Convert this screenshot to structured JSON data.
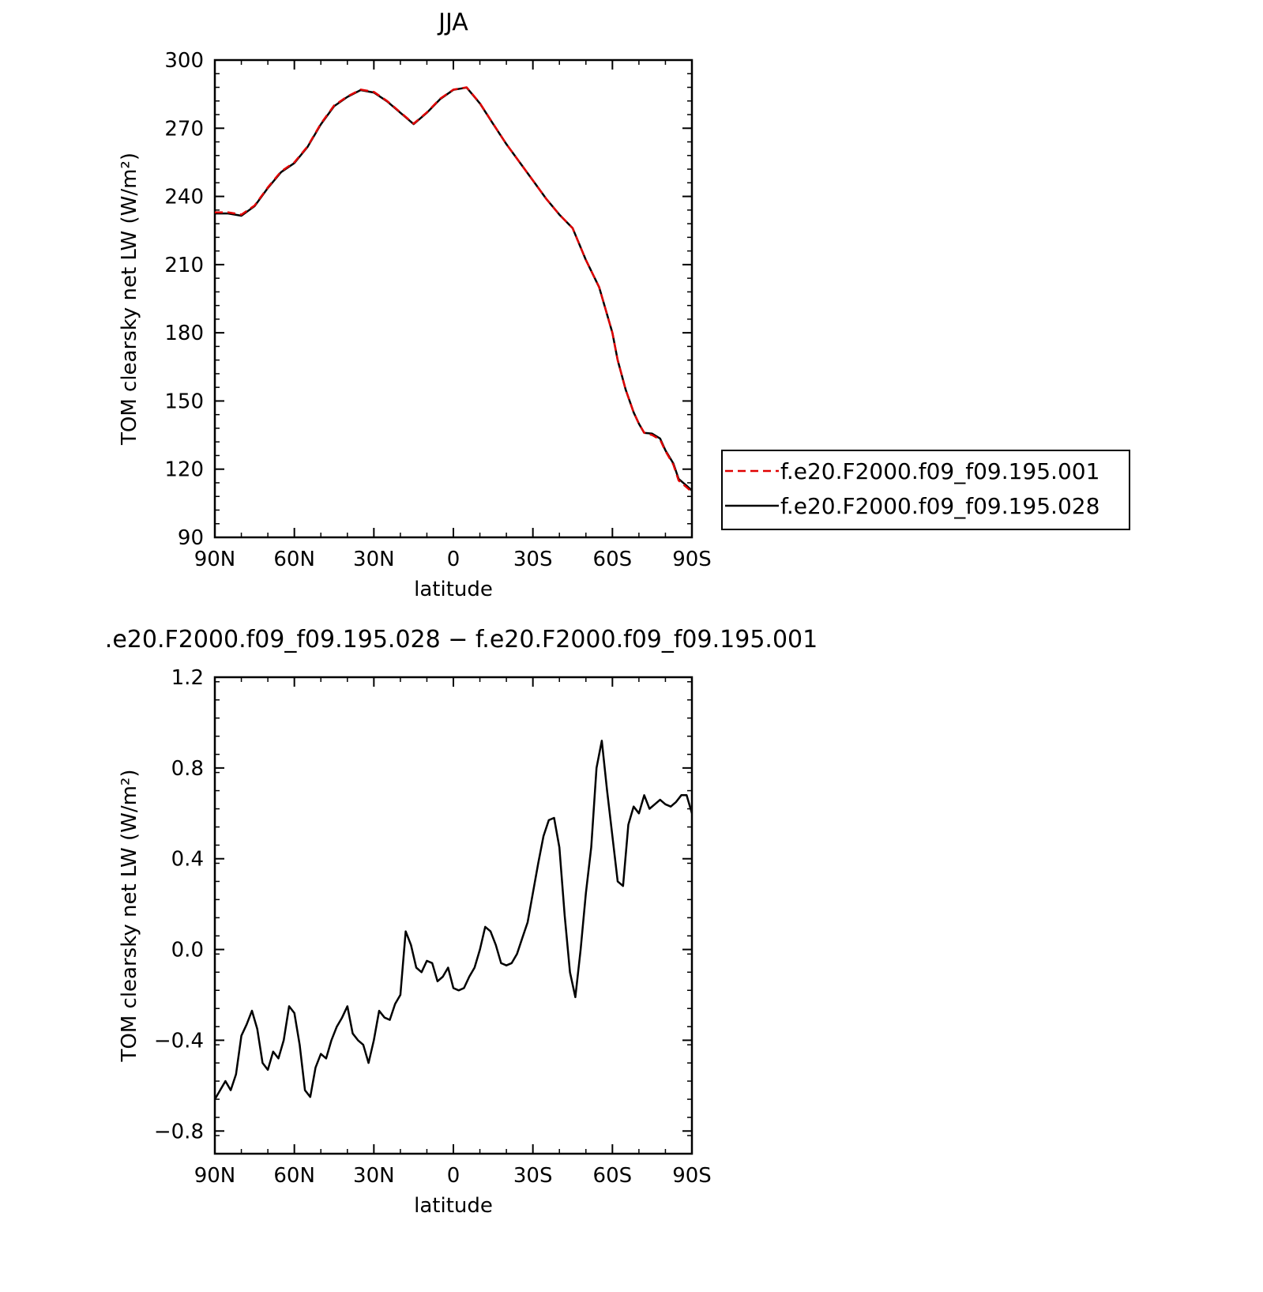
{
  "chart_data": [
    {
      "type": "line",
      "title": "JJA",
      "xlabel": "latitude",
      "ylabel": "TOM clearsky net LW (W/m²)",
      "xlim": [
        90,
        -90
      ],
      "ylim": [
        90,
        300
      ],
      "xticks": [
        90,
        60,
        30,
        0,
        -30,
        -60,
        -90
      ],
      "xtick_labels": [
        "90N",
        "60N",
        "30N",
        "0",
        "30S",
        "60S",
        "90S"
      ],
      "yticks": [
        90,
        120,
        150,
        180,
        210,
        240,
        270,
        300
      ],
      "ytick_labels": [
        "90",
        "120",
        "150",
        "180",
        "210",
        "240",
        "270",
        "300"
      ],
      "legend_position": "right",
      "x": [
        90,
        85,
        80,
        75,
        70,
        65,
        60,
        55,
        50,
        45,
        40,
        35,
        30,
        25,
        20,
        15,
        10,
        5,
        0,
        -5,
        -10,
        -15,
        -20,
        -25,
        -30,
        -35,
        -40,
        -45,
        -50,
        -55,
        -60,
        -62,
        -65,
        -68,
        -70,
        -72,
        -75,
        -78,
        -80,
        -83,
        -85,
        -88,
        -90
      ],
      "series": [
        {
          "name": "f.e20.F2000.f09_f09.195.001",
          "color": "#e00000",
          "dash": "dashed",
          "values": [
            233,
            233,
            232,
            236,
            244,
            251,
            255,
            262,
            272,
            280,
            284,
            287,
            286,
            282,
            277,
            272,
            277,
            283,
            287,
            288,
            281,
            272,
            263,
            255,
            247,
            239,
            232,
            226,
            212,
            200,
            180,
            168,
            155,
            145,
            140,
            136,
            135,
            133,
            128,
            122,
            115,
            112,
            110
          ]
        },
        {
          "name": "f.e20.F2000.f09_f09.195.028",
          "color": "#000000",
          "dash": "solid",
          "values": [
            232.5,
            232.5,
            231.5,
            235.7,
            243.7,
            250.7,
            254.7,
            261.8,
            271.7,
            279.7,
            283.8,
            286.8,
            285.7,
            281.8,
            276.8,
            271.8,
            276.8,
            282.8,
            286.9,
            287.9,
            280.9,
            271.9,
            263,
            255,
            247,
            239,
            232,
            226,
            212,
            200,
            180,
            168,
            155,
            145,
            140,
            136,
            135.6,
            133.5,
            128.3,
            122.5,
            115.7,
            112.7,
            110.6
          ]
        }
      ]
    },
    {
      "type": "line",
      "title": ".e20.F2000.f09_f09.195.028 − f.e20.F2000.f09_f09.195.001",
      "xlabel": "latitude",
      "ylabel": "TOM clearsky net LW (W/m²)",
      "xlim": [
        90,
        -90
      ],
      "ylim": [
        -0.9,
        1.2
      ],
      "xticks": [
        90,
        60,
        30,
        0,
        -30,
        -60,
        -90
      ],
      "xtick_labels": [
        "90N",
        "60N",
        "30N",
        "0",
        "30S",
        "60S",
        "90S"
      ],
      "yticks": [
        1.2,
        0.8,
        0.4,
        0.0,
        -0.4,
        -0.8
      ],
      "ytick_labels": [
        "1.2",
        "0.8",
        "0.4",
        "0.0",
        "−0.4",
        "−0.8"
      ],
      "series": [
        {
          "color": "#000000",
          "x": [
            90,
            88,
            86,
            84,
            82,
            80,
            78,
            76,
            74,
            72,
            70,
            68,
            66,
            64,
            62,
            60,
            58,
            56,
            54,
            52,
            50,
            48,
            46,
            44,
            42,
            40,
            38,
            36,
            34,
            32,
            30,
            28,
            26,
            24,
            22,
            20,
            18,
            16,
            14,
            12,
            10,
            8,
            6,
            4,
            2,
            0,
            -2,
            -4,
            -6,
            -8,
            -10,
            -12,
            -14,
            -16,
            -18,
            -20,
            -22,
            -24,
            -26,
            -28,
            -30,
            -32,
            -34,
            -36,
            -38,
            -40,
            -42,
            -44,
            -46,
            -48,
            -50,
            -52,
            -54,
            -56,
            -58,
            -60,
            -62,
            -64,
            -66,
            -68,
            -70,
            -72,
            -74,
            -76,
            -78,
            -80,
            -82,
            -84,
            -86,
            -88,
            -90
          ],
          "values": [
            -0.66,
            -0.62,
            -0.58,
            -0.62,
            -0.55,
            -0.38,
            -0.33,
            -0.27,
            -0.35,
            -0.5,
            -0.53,
            -0.45,
            -0.48,
            -0.4,
            -0.25,
            -0.28,
            -0.42,
            -0.62,
            -0.65,
            -0.52,
            -0.46,
            -0.48,
            -0.4,
            -0.34,
            -0.3,
            -0.25,
            -0.37,
            -0.4,
            -0.42,
            -0.5,
            -0.4,
            -0.27,
            -0.3,
            -0.31,
            -0.24,
            -0.2,
            0.08,
            0.02,
            -0.08,
            -0.1,
            -0.05,
            -0.06,
            -0.14,
            -0.12,
            -0.08,
            -0.17,
            -0.18,
            -0.17,
            -0.12,
            -0.08,
            0.0,
            0.1,
            0.08,
            0.02,
            -0.06,
            -0.07,
            -0.06,
            -0.02,
            0.05,
            0.12,
            0.25,
            0.38,
            0.5,
            0.57,
            0.58,
            0.45,
            0.15,
            -0.1,
            -0.21,
            0.0,
            0.25,
            0.45,
            0.8,
            0.92,
            0.7,
            0.5,
            0.3,
            0.28,
            0.55,
            0.63,
            0.6,
            0.68,
            0.62,
            0.64,
            0.66,
            0.64,
            0.63,
            0.65,
            0.68,
            0.68,
            0.6
          ]
        }
      ]
    }
  ]
}
